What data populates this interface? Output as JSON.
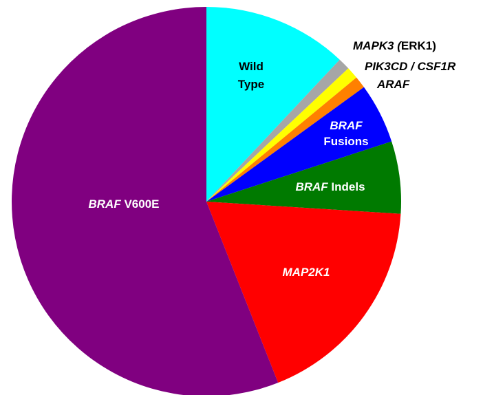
{
  "chart_data": {
    "type": "pie",
    "slices": [
      {
        "label": [
          {
            "text": "Wild",
            "italic": false
          },
          {
            "text": "Type",
            "italic": false
          }
        ],
        "value": 12,
        "color": "#00ffff",
        "label_color": "#000000"
      },
      {
        "label": [
          {
            "text": "MAPK3 (",
            "italic": true
          },
          {
            "text": "ERK1)",
            "italic": false
          }
        ],
        "value": 1,
        "color": "#a6a6a6",
        "label_color": "#000000"
      },
      {
        "label": [
          {
            "text": "PIK3CD / CSF1R",
            "italic": true
          }
        ],
        "value": 1,
        "color": "#ffff00",
        "label_color": "#000000"
      },
      {
        "label": [
          {
            "text": "ARAF",
            "italic": true
          }
        ],
        "value": 1,
        "color": "#ff8000",
        "label_color": "#000000"
      },
      {
        "label": [
          {
            "text": "BRAF",
            "italic": true
          },
          {
            "text": "Fusions",
            "italic": false
          }
        ],
        "value": 5,
        "color": "#0000ff",
        "label_color": "#ffffff"
      },
      {
        "label": [
          {
            "text": "BRAF",
            "italic": true
          },
          {
            "text": " Indels",
            "italic": false
          }
        ],
        "value": 6,
        "color": "#007a00",
        "label_color": "#ffffff"
      },
      {
        "label": [
          {
            "text": "MAP2K1",
            "italic": true
          }
        ],
        "value": 18,
        "color": "#ff0000",
        "label_color": "#ffffff"
      },
      {
        "label": [
          {
            "text": "BRAF",
            "italic": true
          },
          {
            "text": " V600E",
            "italic": false
          }
        ],
        "value": 56,
        "color": "#800080",
        "label_color": "#ffffff"
      }
    ]
  }
}
